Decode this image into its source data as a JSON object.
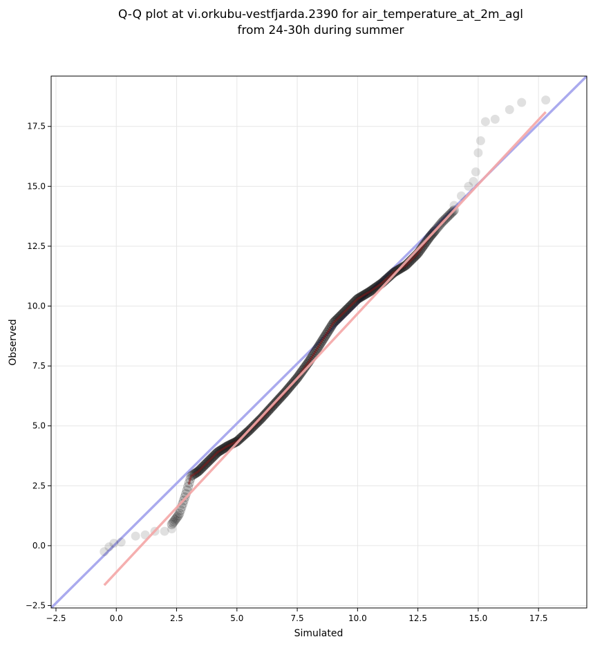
{
  "chart_data": {
    "type": "scatter",
    "title": [
      "Q-Q plot at vi.orkubu-vestfjarda.2390 for air_temperature_at_2m_agl",
      "from 24-30h during summer"
    ],
    "xlabel": "Simulated",
    "ylabel": "Observed",
    "xlim": [
      -2.7,
      19.5
    ],
    "ylim": [
      -2.6,
      19.6
    ],
    "xticks": [
      -2.5,
      0.0,
      2.5,
      5.0,
      7.5,
      10.0,
      12.5,
      15.0,
      17.5
    ],
    "yticks": [
      -2.5,
      0.0,
      2.5,
      5.0,
      7.5,
      10.0,
      12.5,
      15.0,
      17.5
    ],
    "xtick_labels": [
      "−2.5",
      "0.0",
      "2.5",
      "5.0",
      "7.5",
      "10.0",
      "12.5",
      "15.0",
      "17.5"
    ],
    "ytick_labels": [
      "−2.5",
      "0.0",
      "2.5",
      "5.0",
      "7.5",
      "10.0",
      "12.5",
      "15.0",
      "17.5"
    ],
    "grid": true,
    "identity_line": {
      "color": "#aaaaee",
      "from": [
        -2.7,
        -2.6
      ],
      "to": [
        19.5,
        19.6
      ]
    },
    "fit_line": {
      "color": "#f4a6a6",
      "from": [
        -0.5,
        -1.65
      ],
      "to": [
        17.8,
        18.1
      ]
    },
    "quantile_curve": {
      "color_center": "#8b1a1a",
      "x": [
        -0.5,
        0.5,
        1.5,
        2.2,
        2.6,
        2.9,
        3.1,
        3.4,
        3.8,
        4.2,
        4.6,
        5.0,
        5.5,
        6.0,
        6.5,
        7.0,
        7.5,
        8.0,
        8.5,
        9.0,
        9.5,
        10.0,
        10.5,
        11.0,
        11.5,
        12.0,
        12.5,
        13.0,
        13.5,
        14.0
      ],
      "y": [
        -0.2,
        0.3,
        0.55,
        0.75,
        1.3,
        2.2,
        2.9,
        3.1,
        3.5,
        3.9,
        4.15,
        4.35,
        4.8,
        5.3,
        5.85,
        6.4,
        7.0,
        7.7,
        8.5,
        9.3,
        9.8,
        10.3,
        10.6,
        10.95,
        11.4,
        11.7,
        12.2,
        12.9,
        13.5,
        14.0
      ]
    },
    "tail_points": {
      "x": [
        -0.5,
        -0.3,
        -0.1,
        0.2,
        0.8,
        1.2,
        1.6,
        2.0,
        2.3,
        14.0,
        14.3,
        14.6,
        14.8,
        14.9,
        15.0,
        15.1,
        15.3,
        15.7,
        16.3,
        16.8,
        17.8
      ],
      "y": [
        -0.25,
        -0.05,
        0.1,
        0.15,
        0.4,
        0.45,
        0.6,
        0.6,
        0.7,
        14.2,
        14.6,
        15.0,
        15.2,
        15.6,
        16.4,
        16.9,
        17.7,
        17.8,
        18.2,
        18.5,
        18.6
      ]
    }
  }
}
